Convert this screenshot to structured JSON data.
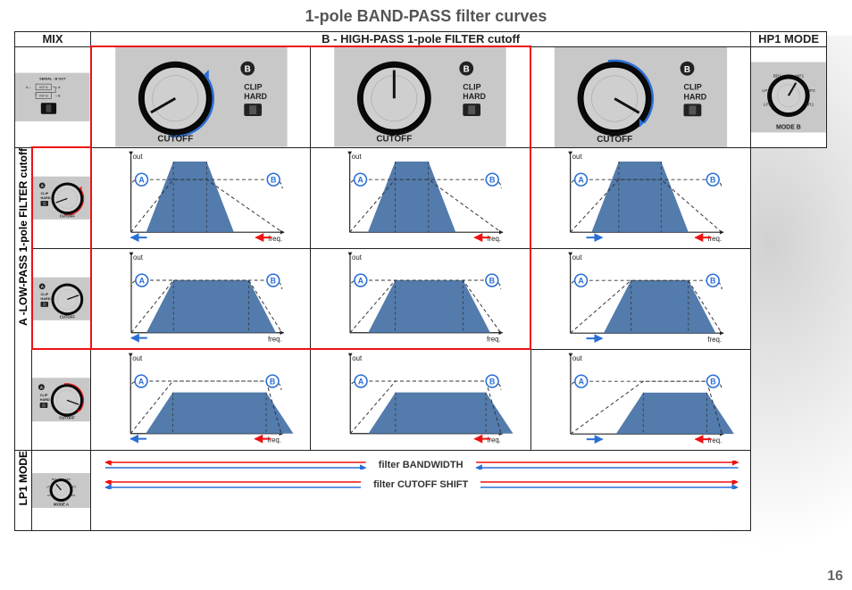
{
  "page": {
    "title": "1-pole BAND-PASS filter curves",
    "number": "16"
  },
  "headers": {
    "mix": "MIX",
    "b_hp": "B - HIGH-PASS 1-pole FILTER cutoff",
    "hp1_mode": "HP1 MODE",
    "a_lp": "A -LOW-PASS 1-pole FILTER cutoff",
    "lp1_mode": "LP1 MODE",
    "serial": "SERIAL - B OUT"
  },
  "knob_labels": {
    "cutoff": "CUTOFF",
    "clip": "CLIP",
    "hard": "HARD",
    "mode_a": "MODE A",
    "mode_b": "MODE B",
    "vcf_a": "VCF A",
    "vcf_b": "VCF B",
    "a": "A",
    "b": "B",
    "bp1": "BP1",
    "hp1": "HP1",
    "hp2": "HP2",
    "lp1": "LP1",
    "lp2": "LP2",
    "br1": "BR1"
  },
  "chart": {
    "out": "out",
    "freq": "freq.",
    "badge_a": "A",
    "badge_b": "B"
  },
  "bottom": {
    "bandwidth": "filter BANDWIDTH",
    "cutoff_shift": "filter CUTOFF SHIFT"
  },
  "colors": {
    "fill": "#4a74a8",
    "dash": "#333",
    "grid": "#999",
    "blue": "#2a6fd6",
    "red": "#e11",
    "badge_blue": "#2a6fd6",
    "knob_face": "#cfcfcf",
    "knob_body": "#1a1a1a",
    "panel": "#c8c8c8"
  },
  "charts": [
    {
      "row": 0,
      "col": 0,
      "lp_center": 0.28,
      "hp_center": 0.5,
      "peak": 0.94,
      "blue_left": true,
      "red_right": true
    },
    {
      "row": 0,
      "col": 1,
      "lp_center": 0.3,
      "hp_center": 0.52,
      "peak": 0.94,
      "blue_left": false,
      "red_right": true
    },
    {
      "row": 0,
      "col": 2,
      "lp_center": 0.32,
      "hp_center": 0.6,
      "peak": 0.94,
      "blue_left": true,
      "blue_dir": "right",
      "red_right": true
    },
    {
      "row": 1,
      "col": 0,
      "lp_center": 0.28,
      "hp_center": 0.78,
      "peak": 0.7,
      "blue_left": true,
      "red_right": false
    },
    {
      "row": 1,
      "col": 1,
      "lp_center": 0.3,
      "hp_center": 0.75,
      "peak": 0.7,
      "blue_left": false,
      "red_right": false
    },
    {
      "row": 1,
      "col": 2,
      "lp_center": 0.4,
      "hp_center": 0.78,
      "peak": 0.7,
      "blue_left": true,
      "blue_dir": "right",
      "red_right": false
    },
    {
      "row": 2,
      "col": 0,
      "lp_center": 0.28,
      "hp_center": 0.9,
      "peak": 0.55,
      "blue_left": true,
      "red_right": true
    },
    {
      "row": 2,
      "col": 1,
      "lp_center": 0.3,
      "hp_center": 0.9,
      "peak": 0.55,
      "blue_left": false,
      "red_right": true
    },
    {
      "row": 2,
      "col": 2,
      "lp_center": 0.48,
      "hp_center": 0.9,
      "peak": 0.55,
      "blue_left": true,
      "blue_dir": "right",
      "red_right": true
    }
  ],
  "b_knobs": [
    {
      "angle": -120,
      "arc": "blue",
      "arc_dir": "ccw"
    },
    {
      "angle": 0,
      "arc": null
    },
    {
      "angle": 120,
      "arc": "blue",
      "arc_dir": "cw"
    }
  ],
  "a_knobs": [
    {
      "angle": -110,
      "arc": "red",
      "arc_dir": "ccw"
    },
    {
      "angle": 70,
      "arc": null
    },
    {
      "angle": 110,
      "arc": "red",
      "arc_dir": "cw"
    }
  ]
}
